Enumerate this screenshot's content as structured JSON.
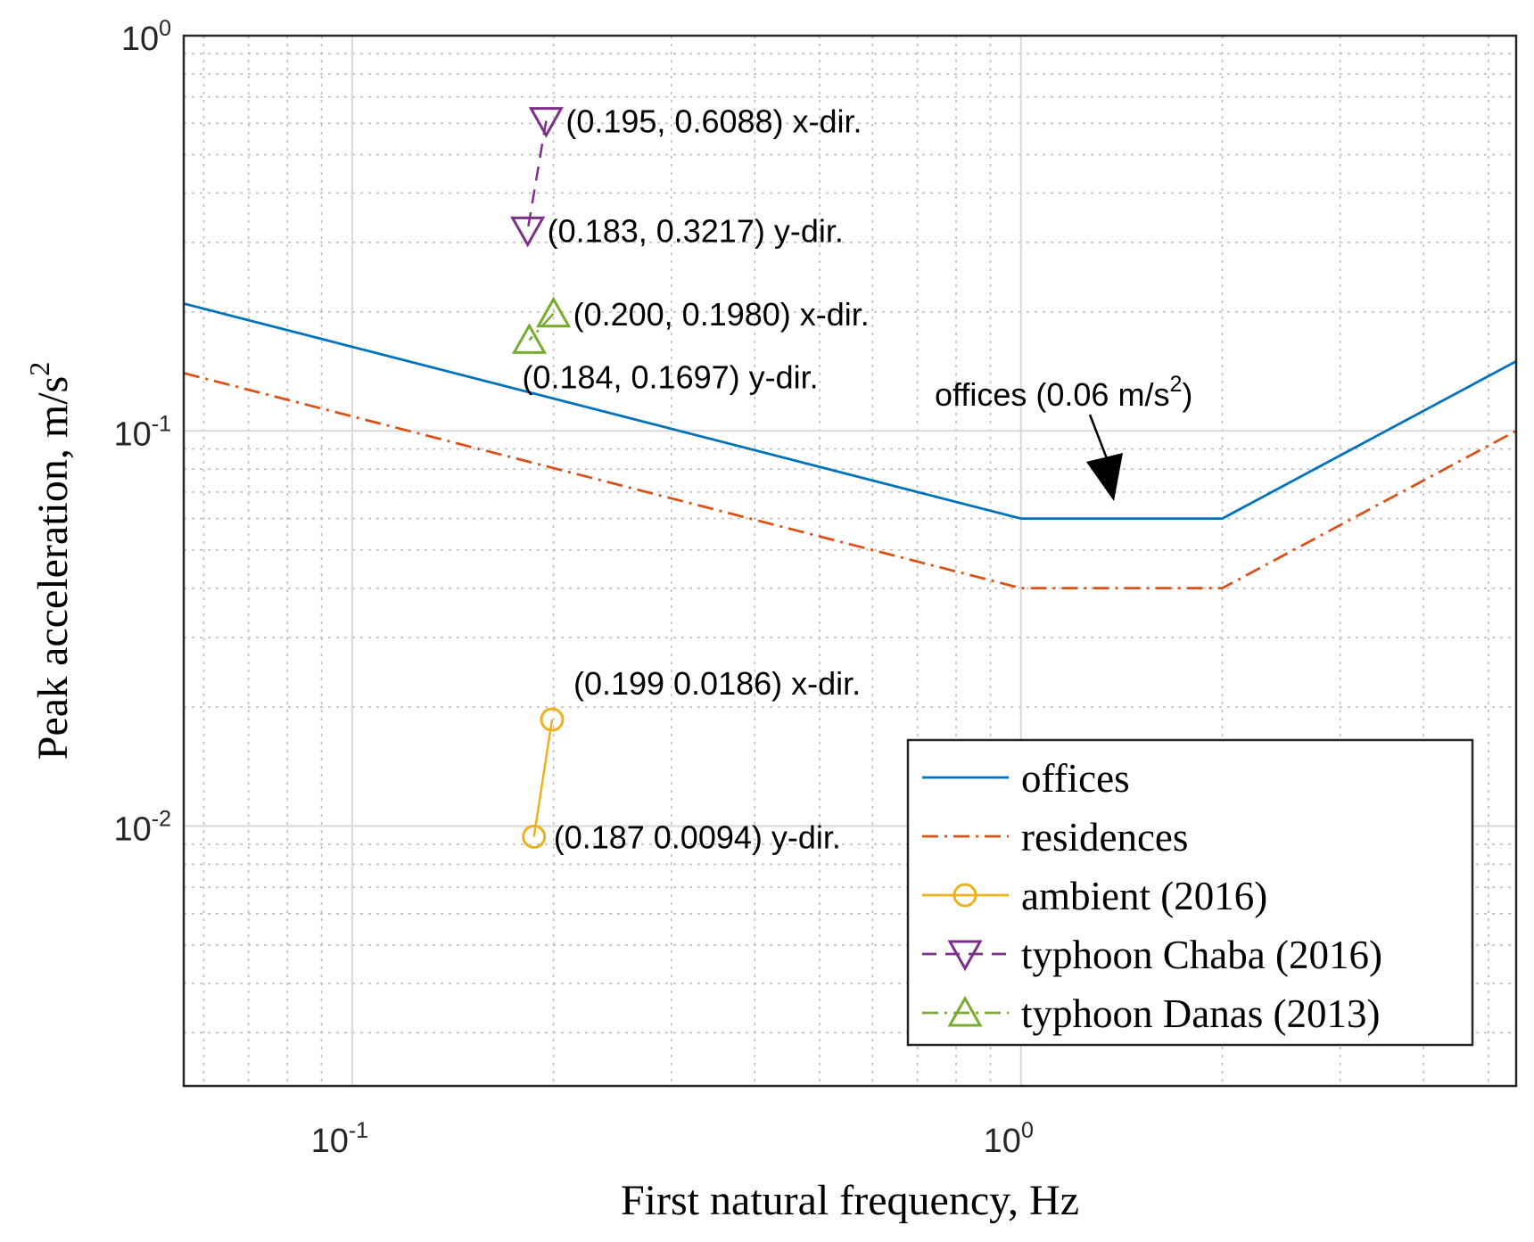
{
  "chart_data": {
    "type": "line",
    "xscale": "log",
    "yscale": "log",
    "xlim": [
      0.056,
      5.5
    ],
    "ylim": [
      0.0022,
      1.0
    ],
    "grid": true,
    "xlabel": "First natural frequency, Hz",
    "ylabel": {
      "text": "Peak acceleration, m/s",
      "sup": "2"
    },
    "x_ticks": [
      {
        "value": 0.1,
        "base": "10",
        "exp": "-1"
      },
      {
        "value": 1,
        "base": "10",
        "exp": "0"
      }
    ],
    "y_ticks": [
      {
        "value": 1,
        "base": "10",
        "exp": "0"
      },
      {
        "value": 0.1,
        "base": "10",
        "exp": "-1"
      },
      {
        "value": 0.01,
        "base": "10",
        "exp": "-2"
      }
    ],
    "series": [
      {
        "name": "offices",
        "color": "#0072BD",
        "style": "solid",
        "marker": "none",
        "x": [
          0.056,
          1,
          2,
          5.5
        ],
        "y": [
          0.21,
          0.06,
          0.06,
          0.15
        ]
      },
      {
        "name": "residences",
        "color": "#D95319",
        "style": "dashdot",
        "marker": "none",
        "x": [
          0.056,
          1,
          2,
          5.5
        ],
        "y": [
          0.14,
          0.04,
          0.04,
          0.1
        ]
      },
      {
        "name": "ambient (2016)",
        "color": "#EDB120",
        "style": "solid",
        "marker": "circle",
        "x": [
          0.199,
          0.187
        ],
        "y": [
          0.0186,
          0.0094
        ]
      },
      {
        "name": "typhoon Chaba (2016)",
        "color": "#7E2F8E",
        "style": "dashed",
        "marker": "triangle-down",
        "x": [
          0.195,
          0.183
        ],
        "y": [
          0.6088,
          0.3217
        ]
      },
      {
        "name": "typhoon Danas (2013)",
        "color": "#77AC30",
        "style": "dashdot",
        "marker": "triangle-up",
        "x": [
          0.2,
          0.184
        ],
        "y": [
          0.198,
          0.1697
        ]
      }
    ],
    "annotations": [
      {
        "text": "(0.195, 0.6088) x-dir.",
        "x": 0.195,
        "y": 0.6088,
        "anchor": "right"
      },
      {
        "text": "(0.183, 0.3217) y-dir.",
        "x": 0.183,
        "y": 0.3217,
        "anchor": "right"
      },
      {
        "text": "(0.200, 0.1980) x-dir.",
        "x": 0.2,
        "y": 0.198,
        "anchor": "right"
      },
      {
        "text": "(0.184, 0.1697) y-dir.",
        "x": 0.184,
        "y": 0.1697,
        "anchor": "below"
      },
      {
        "text": "(0.199 0.0186) x-dir.",
        "x": 0.199,
        "y": 0.0186,
        "anchor": "above-right"
      },
      {
        "text": "(0.187 0.0094) y-dir.",
        "x": 0.187,
        "y": 0.0094,
        "anchor": "right"
      }
    ],
    "arrow_annotation": {
      "text": "offices (0.06 m/s",
      "sup": "2",
      "suffix": ")",
      "target": {
        "x": 1.3,
        "y": 0.06
      }
    },
    "legend": {
      "position": "bottom-right"
    }
  }
}
